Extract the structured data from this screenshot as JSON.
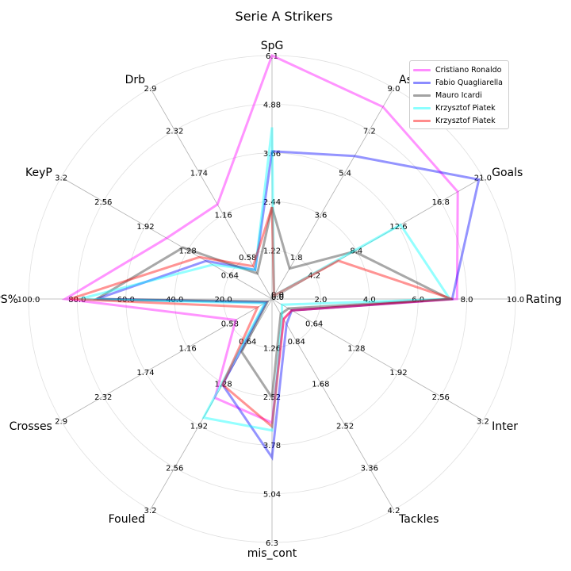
{
  "chart_data": {
    "type": "radar",
    "title": "Serie A Strikers",
    "axes": [
      {
        "name": "SpG",
        "max": 6.1,
        "ticks": [
          "1.22",
          "2.44",
          "3.66",
          "4.88",
          "6.1"
        ]
      },
      {
        "name": "Assists",
        "max": 9.0,
        "ticks": [
          "1.8",
          "3.6",
          "5.4",
          "7.2",
          "9.0"
        ]
      },
      {
        "name": "Goals",
        "max": 21.0,
        "ticks": [
          "4.2",
          "8.4",
          "12.6",
          "16.8",
          "21.0"
        ]
      },
      {
        "name": "Rating",
        "max": 10.0,
        "ticks": [
          "2.0",
          "4.0",
          "6.0",
          "8.0",
          "10.0"
        ]
      },
      {
        "name": "Inter",
        "max": 3.2,
        "ticks": [
          "0.64",
          "1.28",
          "1.92",
          "2.56",
          "3.2"
        ]
      },
      {
        "name": "Tackles",
        "max": 4.2,
        "ticks": [
          "0.84",
          "1.68",
          "2.52",
          "3.36",
          "4.2"
        ]
      },
      {
        "name": "mis_cont",
        "max": 6.3,
        "ticks": [
          "1.26",
          "2.52",
          "3.78",
          "5.04",
          "6.3"
        ]
      },
      {
        "name": "Fouled",
        "max": 3.2,
        "ticks": [
          "0.64",
          "1.28",
          "1.92",
          "2.56",
          "3.2"
        ]
      },
      {
        "name": "Crosses",
        "max": 2.9,
        "ticks": [
          "0.58",
          "1.16",
          "1.74",
          "2.32",
          "2.9"
        ]
      },
      {
        "name": "PS%",
        "max": 100.0,
        "ticks": [
          "20.0",
          "40.0",
          "60.0",
          "80.0",
          "100.0"
        ]
      },
      {
        "name": "KeyP",
        "max": 3.2,
        "ticks": [
          "0.64",
          "1.28",
          "1.92",
          "2.56",
          "3.2"
        ]
      },
      {
        "name": "Drb",
        "max": 2.9,
        "ticks": [
          "0.58",
          "1.16",
          "1.74",
          "2.32",
          "2.9"
        ]
      }
    ],
    "zero_labels": [
      "0.0",
      "0.0",
      "0.0",
      "0.0"
    ],
    "series": [
      {
        "name": "Cristiano Ronaldo",
        "color": "#ff00ff",
        "values": [
          6.1,
          8.2,
          18.5,
          7.6,
          0.3,
          0.4,
          3.2,
          1.5,
          0.5,
          85.0,
          1.6,
          1.3
        ]
      },
      {
        "name": "Fabio Quagliarella",
        "color": "#0000ff",
        "values": [
          3.7,
          6.1,
          20.6,
          7.4,
          0.3,
          0.5,
          4.1,
          1.3,
          0.08,
          72.0,
          1.0,
          0.4
        ]
      },
      {
        "name": "Mauro Icardi",
        "color": "#303030",
        "values": [
          2.3,
          1.3,
          8.2,
          7.3,
          0.25,
          0.3,
          2.55,
          0.8,
          0.06,
          72.0,
          1.35,
          0.35
        ]
      },
      {
        "name": "Krzysztof Piatek",
        "color": "#00ffff",
        "values": [
          4.3,
          0.15,
          12.8,
          7.3,
          0.15,
          0.35,
          3.4,
          1.8,
          0.1,
          79.0,
          0.9,
          0.4
        ]
      },
      {
        "name": "Krzysztof Piatek",
        "color": "#ff0000",
        "values": [
          2.3,
          0.15,
          6.6,
          7.4,
          0.3,
          0.4,
          3.3,
          1.3,
          0.2,
          83.0,
          1.1,
          0.45
        ]
      }
    ],
    "grid": true,
    "legend_position": "top-right"
  }
}
